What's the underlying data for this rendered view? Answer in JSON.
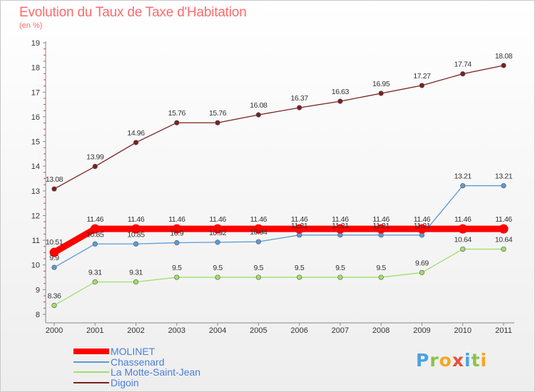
{
  "header": {
    "title": "Evolution du Taux de Taxe d'Habitation",
    "subtitle": "(en %)"
  },
  "brand": {
    "letters": [
      "P",
      "r",
      "o",
      "x",
      "i",
      "t",
      "i"
    ]
  },
  "chart_data": {
    "type": "line",
    "title": "Evolution du Taux de Taxe d'Habitation",
    "ylabel": "(en %)",
    "xlabel": "",
    "ylim": [
      8,
      19
    ],
    "grid": false,
    "legend_position": "bottom-left",
    "x": [
      "2000",
      "2001",
      "2002",
      "2003",
      "2004",
      "2005",
      "2006",
      "2007",
      "2008",
      "2009",
      "2010",
      "2011"
    ],
    "yticks": [
      "8",
      "9",
      "10",
      "11",
      "12",
      "13",
      "14",
      "15",
      "16",
      "17",
      "18",
      "19"
    ],
    "series": [
      {
        "name": "MOLINET",
        "color": "#ff0000",
        "values": [
          10.51,
          11.46,
          11.46,
          11.46,
          11.46,
          11.46,
          11.46,
          11.46,
          11.46,
          11.46,
          11.46,
          11.46
        ],
        "labels": [
          "10.51",
          "11.46",
          "11.46",
          "11.46",
          "11.46",
          "11.46",
          "11.46",
          "11.46",
          "11.46",
          "11.46",
          "11.46",
          "11.46"
        ]
      },
      {
        "name": "Chassenard",
        "color": "#5b9bd5",
        "values": [
          9.9,
          10.85,
          10.85,
          10.9,
          10.92,
          10.94,
          11.21,
          11.21,
          11.21,
          11.21,
          13.21,
          13.21
        ],
        "labels": [
          "9.9",
          "10.85",
          "10.85",
          "10.9",
          "10.92",
          "10.94",
          "11.21",
          "11.21",
          "11.21",
          "11.21",
          "13.21",
          "13.21"
        ]
      },
      {
        "name": "La Motte-Saint-Jean",
        "color": "#9ee06a",
        "values": [
          8.36,
          9.31,
          9.31,
          9.5,
          9.5,
          9.5,
          9.5,
          9.5,
          9.5,
          9.69,
          10.64,
          10.64
        ],
        "labels": [
          "8.36",
          "9.31",
          "9.31",
          "9.5",
          "9.5",
          "9.5",
          "9.5",
          "9.5",
          "9.5",
          "9.69",
          "10.64",
          "10.64"
        ]
      },
      {
        "name": "Digoin",
        "color": "#7a2020",
        "values": [
          13.08,
          13.99,
          14.96,
          15.76,
          15.76,
          16.08,
          16.37,
          16.63,
          16.95,
          17.27,
          17.74,
          18.08
        ],
        "labels": [
          "13.08",
          "13.99",
          "14.96",
          "15.76",
          "15.76",
          "16.08",
          "16.37",
          "16.63",
          "16.95",
          "17.27",
          "17.74",
          "18.08"
        ]
      }
    ]
  }
}
